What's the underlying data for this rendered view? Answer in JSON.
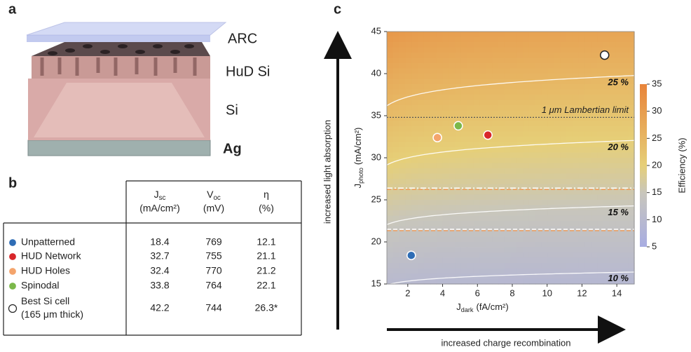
{
  "panel_labels": [
    "a",
    "b",
    "c"
  ],
  "diagram": {
    "layers": [
      {
        "label": "ARC",
        "color": "#8a90cc"
      },
      {
        "label": "HuD Si",
        "color": "#c98b8b"
      },
      {
        "label": "Si",
        "color": "#b57373"
      },
      {
        "label": "Ag",
        "color": "#4a4a4a"
      }
    ]
  },
  "table": {
    "columns": [
      {
        "symbol": "J",
        "subscript": "sc",
        "unit": "(mA/cm²)"
      },
      {
        "symbol": "V",
        "subscript": "oc",
        "unit": "(mV)"
      },
      {
        "symbol": "η",
        "unit": "(%)"
      }
    ],
    "rows": [
      {
        "marker_color": "#2f6db5",
        "label": [
          "Unpatterned"
        ],
        "values": [
          "18.4",
          "769",
          "12.1"
        ]
      },
      {
        "marker_color": "#d8262a",
        "label": [
          "HUD Network"
        ],
        "values": [
          "32.7",
          "755",
          "21.1"
        ]
      },
      {
        "marker_color": "#f4a46c",
        "label": [
          "HUD Holes"
        ],
        "values": [
          "32.4",
          "770",
          "21.2"
        ]
      },
      {
        "marker_color": "#7bb84a",
        "label": [
          "Spinodal"
        ],
        "values": [
          "33.8",
          "764",
          "22.1"
        ]
      },
      {
        "marker_color": "#ffffff",
        "label": [
          "Best Si cell",
          "(165 μm thick)"
        ],
        "values": [
          "42.2",
          "744",
          "26.3*"
        ]
      }
    ]
  },
  "chart_data": {
    "type": "scatter",
    "x_label": {
      "symbol": "J",
      "subscript": "dark",
      "unit": "(fA/cm²)"
    },
    "y_label": {
      "symbol": "J",
      "subscript": "photo",
      "unit": "(mA/cm²)"
    },
    "x": [
      2.2,
      3.7,
      4.9,
      6.6,
      13.3
    ],
    "values": [
      18.4,
      32.4,
      33.8,
      32.7,
      42.2
    ],
    "colors": [
      "#2f6db5",
      "#f4a46c",
      "#7bb84a",
      "#d8262a",
      "#ffffff"
    ],
    "xlim": [
      0.8,
      15
    ],
    "xticks": [
      2,
      4,
      6,
      8,
      10,
      12,
      14
    ],
    "ylim": [
      15,
      45
    ],
    "yticks": [
      15,
      20,
      25,
      30,
      35,
      40,
      45
    ],
    "contours": [
      {
        "value": 10,
        "label": "10 %"
      },
      {
        "value": 15,
        "label": "15 %"
      },
      {
        "value": 20,
        "label": "20 %"
      },
      {
        "value": 25,
        "label": "25 %"
      }
    ],
    "reference_lines": [
      {
        "value": 34.8,
        "label": "1 μm Lambertian limit",
        "style": "dotted"
      },
      {
        "value": 26.4,
        "style": "dashdot"
      },
      {
        "value": 21.5,
        "style": "dashed"
      }
    ],
    "colorbar": {
      "label": "Efficiency (%)",
      "lim": [
        5,
        35
      ],
      "ticks": [
        5,
        10,
        15,
        20,
        25,
        30,
        35
      ]
    },
    "arrows": {
      "y": "increased light absorption",
      "x": "increased charge recombination"
    }
  }
}
